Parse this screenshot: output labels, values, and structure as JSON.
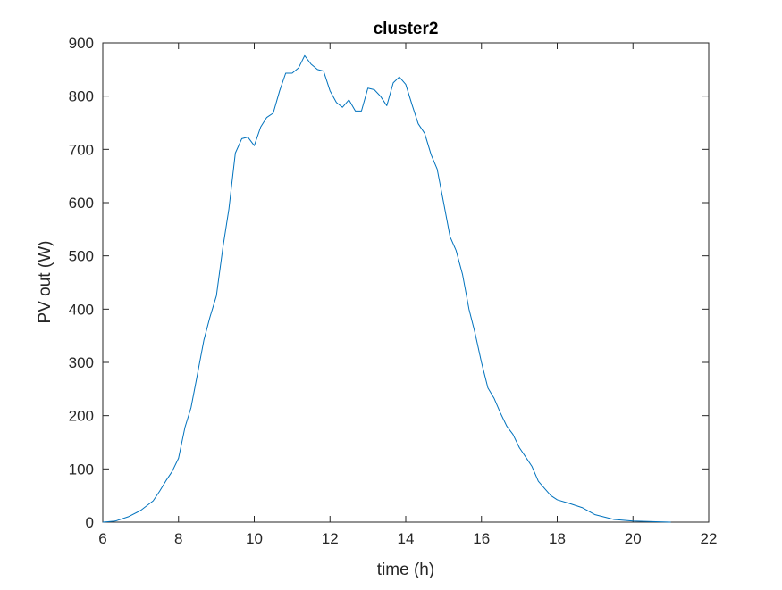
{
  "chart_data": {
    "type": "line",
    "title": "cluster2",
    "xlabel": "time (h)",
    "ylabel": "PV out (W)",
    "xlim": [
      6,
      22
    ],
    "ylim": [
      0,
      900
    ],
    "xticks": [
      6,
      8,
      10,
      12,
      14,
      16,
      18,
      20,
      22
    ],
    "yticks": [
      0,
      100,
      200,
      300,
      400,
      500,
      600,
      700,
      800,
      900
    ],
    "grid": false,
    "line_color": "#0072BD",
    "series": [
      {
        "x": [
          6.0,
          6.33,
          6.67,
          7.0,
          7.33,
          7.5,
          7.67,
          7.83,
          8.0,
          8.17,
          8.33,
          8.5,
          8.67,
          8.83,
          9.0,
          9.17,
          9.33,
          9.5,
          9.67,
          9.83,
          10.0,
          10.17,
          10.33,
          10.5,
          10.67,
          10.83,
          11.0,
          11.17,
          11.33,
          11.5,
          11.67,
          11.83,
          12.0,
          12.17,
          12.33,
          12.5,
          12.67,
          12.83,
          13.0,
          13.17,
          13.33,
          13.5,
          13.67,
          13.83,
          14.0,
          14.17,
          14.33,
          14.5,
          14.67,
          14.83,
          15.0,
          15.17,
          15.33,
          15.5,
          15.67,
          15.83,
          16.0,
          16.17,
          16.33,
          16.5,
          16.67,
          16.83,
          17.0,
          17.17,
          17.33,
          17.5,
          17.67,
          17.83,
          18.0,
          18.33,
          18.67,
          19.0,
          19.5,
          20.0,
          20.5,
          21.0
        ],
        "y": [
          0,
          2,
          10,
          22,
          40,
          58,
          78,
          95,
          120,
          178,
          215,
          278,
          342,
          385,
          425,
          515,
          588,
          693,
          720,
          723,
          707,
          742,
          760,
          768,
          810,
          843,
          843,
          853,
          876,
          860,
          850,
          847,
          810,
          788,
          779,
          793,
          772,
          772,
          815,
          812,
          800,
          782,
          825,
          836,
          822,
          783,
          748,
          730,
          690,
          663,
          600,
          536,
          510,
          465,
          400,
          355,
          300,
          252,
          233,
          205,
          180,
          165,
          140,
          122,
          105,
          77,
          63,
          50,
          42,
          35,
          27,
          14,
          5,
          2,
          1,
          0
        ]
      }
    ]
  }
}
